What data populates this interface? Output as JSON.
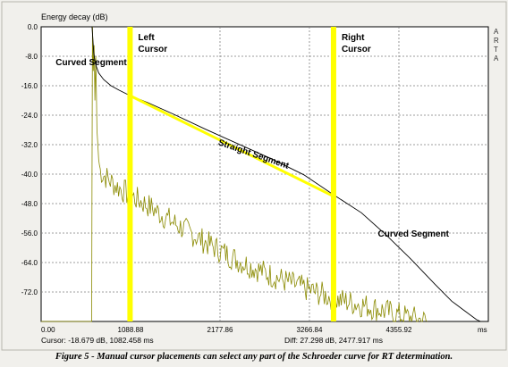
{
  "window": {
    "title": "Energy decay (dB)",
    "app_label_vertical": [
      "A",
      "R",
      "T",
      "A"
    ]
  },
  "status": {
    "cursor": "Cursor: -18.679 dB, 1082.458 ms",
    "diff": "Diff: 27.298 dB, 2477.917 ms"
  },
  "caption": "Figure 5 - Manual cursor placements can select any part of the Schroeder curve for RT determination.",
  "colors": {
    "plot_bg": "#ffffff",
    "frame_bg": "#f1f0ec",
    "grid": "#7f7f7f",
    "cursor": "#ffff00",
    "schroeder_curve": "#000000",
    "impulse_curve": "#8a8a00",
    "straight_segment": "#ffff00"
  },
  "chart_data": {
    "type": "line",
    "title": "Energy decay (dB)",
    "xlabel": "",
    "ylabel": "",
    "x_unit": "ms",
    "xlim": [
      0,
      5445
    ],
    "ylim": [
      -80,
      0
    ],
    "xticks": [
      0,
      1088.88,
      2177.86,
      3266.84,
      4355.92
    ],
    "xtick_labels": [
      "0.00",
      "1088.88",
      "2177.86",
      "3266.84",
      "4355.92",
      "ms"
    ],
    "yticks": [
      0,
      -8,
      -16,
      -24,
      -32,
      -40,
      -48,
      -56,
      -64,
      -72
    ],
    "ytick_labels": [
      "0.0",
      "-8.0",
      "-16.0",
      "-24.0",
      "-32.0",
      "-40.0",
      "-48.0",
      "-56.0",
      "-64.0",
      "-72.0"
    ],
    "grid": true,
    "cursors": [
      {
        "label": "Left\nCursor",
        "x": 1082.458
      },
      {
        "label": "Right\nCursor",
        "x": 3560.375
      }
    ],
    "annotations": [
      {
        "text": "Curved Segment",
        "x": 90,
        "y": -9.5
      },
      {
        "text": "Straight Segment",
        "x": 2150,
        "y": -32
      },
      {
        "text": "Curved Segment",
        "x": 4100,
        "y": -57
      }
    ],
    "straight_segment": {
      "x": [
        1082.458,
        3560.375
      ],
      "y": [
        -18.7,
        -46.0
      ]
    },
    "series": [
      {
        "role": "schroeder",
        "x": [
          0,
          620,
          640,
          660,
          700,
          760,
          850,
          950,
          1082.458,
          1300,
          1600,
          2000,
          2400,
          2800,
          3200,
          3560.375,
          3900,
          4200,
          4500,
          4800,
          5000,
          5150,
          5300,
          5350
        ],
        "y": [
          0,
          0,
          -7,
          -10,
          -12.5,
          -14.3,
          -16,
          -17.2,
          -18.7,
          -20.6,
          -23.6,
          -27.8,
          -31.8,
          -35.8,
          -40.2,
          -45.6,
          -50.5,
          -56.5,
          -63,
          -70,
          -74.5,
          -77,
          -79.5,
          -80
        ]
      },
      {
        "role": "impulse",
        "x": [
          0,
          615,
          625,
          635,
          645,
          655,
          665,
          680,
          700,
          720,
          750,
          800,
          900,
          1000,
          1100,
          1300,
          1600,
          2000,
          2400,
          2800,
          3200,
          3600,
          4000,
          4400,
          4700
        ],
        "y": [
          -80,
          -80,
          0,
          -12,
          -5,
          -20,
          -8,
          -28,
          -36,
          -39,
          -40,
          -41,
          -43,
          -44.5,
          -46,
          -48.5,
          -53,
          -58.5,
          -63.5,
          -67.5,
          -71,
          -74,
          -76,
          -78.5,
          -80
        ]
      }
    ]
  }
}
